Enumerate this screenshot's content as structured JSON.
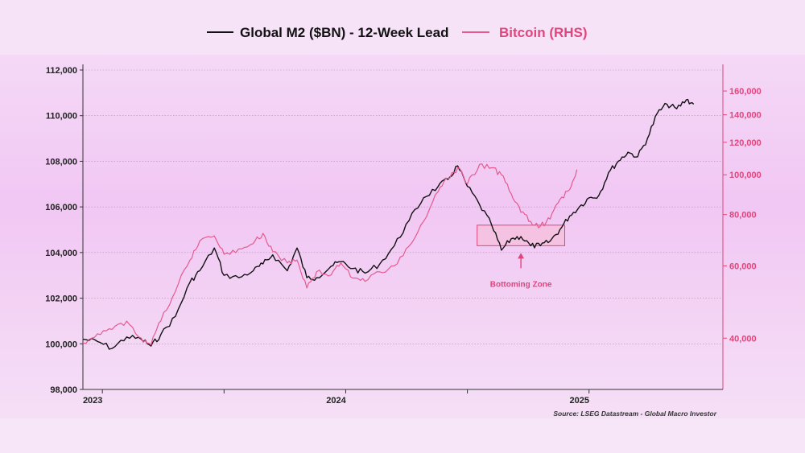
{
  "chart_data": {
    "type": "line",
    "title": "",
    "legend": "top-center",
    "source": "Source: LSEG Datastream - Global Macro Investor",
    "x_ticks": [
      "2023",
      "2024",
      "2025"
    ],
    "left_axis": {
      "label": "Global M2 ($BN) - 12-Week Lead",
      "scale": "linear",
      "range": [
        98000,
        112000
      ],
      "ticks": [
        "112,000",
        "110,000",
        "108,000",
        "106,000",
        "104,000",
        "102,000",
        "100,000",
        "98,000"
      ],
      "tick_values": [
        112000,
        110000,
        108000,
        106000,
        104000,
        102000,
        100000,
        98000
      ]
    },
    "right_axis": {
      "label": "Bitcoin (RHS)",
      "scale": "log",
      "range": [
        30000,
        180000
      ],
      "ticks": [
        "160,000",
        "140,000",
        "120,000",
        "100,000",
        "80,000",
        "60,000",
        "40,000"
      ],
      "tick_values": [
        160000,
        140000,
        120000,
        100000,
        80000,
        60000,
        40000
      ]
    },
    "grid": true,
    "series": [
      {
        "name": "Global M2 ($BN) - 12-Week Lead",
        "axis": "left",
        "color": "#111111",
        "x": [
          2022.92,
          2022.98,
          2023.04,
          2023.1,
          2023.16,
          2023.2,
          2023.24,
          2023.3,
          2023.36,
          2023.4,
          2023.46,
          2023.5,
          2023.56,
          2023.62,
          2023.66,
          2023.7,
          2023.76,
          2023.8,
          2023.84,
          2023.88,
          2023.94,
          2023.98,
          2024.03,
          2024.08,
          2024.14,
          2024.2,
          2024.26,
          2024.32,
          2024.38,
          2024.42,
          2024.46,
          2024.5,
          2024.55,
          2024.6,
          2024.64,
          2024.68,
          2024.72,
          2024.76,
          2024.8,
          2024.84,
          2024.88,
          2024.92,
          2024.96,
          2025.0,
          2025.04,
          2025.08,
          2025.12,
          2025.16,
          2025.2,
          2025.24,
          2025.28,
          2025.32,
          2025.36,
          2025.4,
          2025.43
        ],
        "values": [
          100200,
          100100,
          99800,
          100300,
          100200,
          99900,
          100400,
          101200,
          102700,
          103200,
          104200,
          103000,
          102900,
          103200,
          103500,
          103900,
          103200,
          104200,
          102900,
          102900,
          103400,
          103600,
          103300,
          103100,
          103500,
          104300,
          105400,
          106400,
          106900,
          107200,
          107800,
          106900,
          106100,
          105200,
          104100,
          104600,
          104700,
          104300,
          104300,
          104500,
          105000,
          105600,
          106000,
          106400,
          106500,
          107500,
          108000,
          108400,
          108200,
          109000,
          110100,
          110500,
          110300,
          110700,
          110500
        ]
      },
      {
        "name": "Bitcoin (RHS)",
        "axis": "right",
        "color": "#e55a8f",
        "x": [
          2022.92,
          2022.98,
          2023.04,
          2023.1,
          2023.16,
          2023.2,
          2023.24,
          2023.3,
          2023.36,
          2023.4,
          2023.46,
          2023.5,
          2023.56,
          2023.62,
          2023.66,
          2023.7,
          2023.76,
          2023.8,
          2023.84,
          2023.88,
          2023.94,
          2023.98,
          2024.03,
          2024.08,
          2024.14,
          2024.2,
          2024.26,
          2024.32,
          2024.38,
          2024.42,
          2024.46,
          2024.5,
          2024.55,
          2024.6,
          2024.64,
          2024.68,
          2024.72,
          2024.76,
          2024.8,
          2024.84,
          2024.88,
          2024.92,
          2024.95
        ],
        "values": [
          39000,
          41000,
          42000,
          44000,
          40000,
          38500,
          44000,
          52000,
          62000,
          69000,
          71000,
          64000,
          66000,
          68000,
          72000,
          65000,
          61000,
          62000,
          53000,
          58000,
          57000,
          61000,
          56000,
          55000,
          58000,
          60000,
          67000,
          77000,
          91000,
          98000,
          104000,
          95000,
          106000,
          104000,
          100000,
          90000,
          81000,
          77000,
          75000,
          78000,
          87000,
          92000,
          103000
        ]
      }
    ],
    "annotations": [
      {
        "text": "Bottoming Zone",
        "x_range": [
          2024.54,
          2024.9
        ],
        "y_range_left": [
          104300,
          105200
        ]
      }
    ]
  }
}
